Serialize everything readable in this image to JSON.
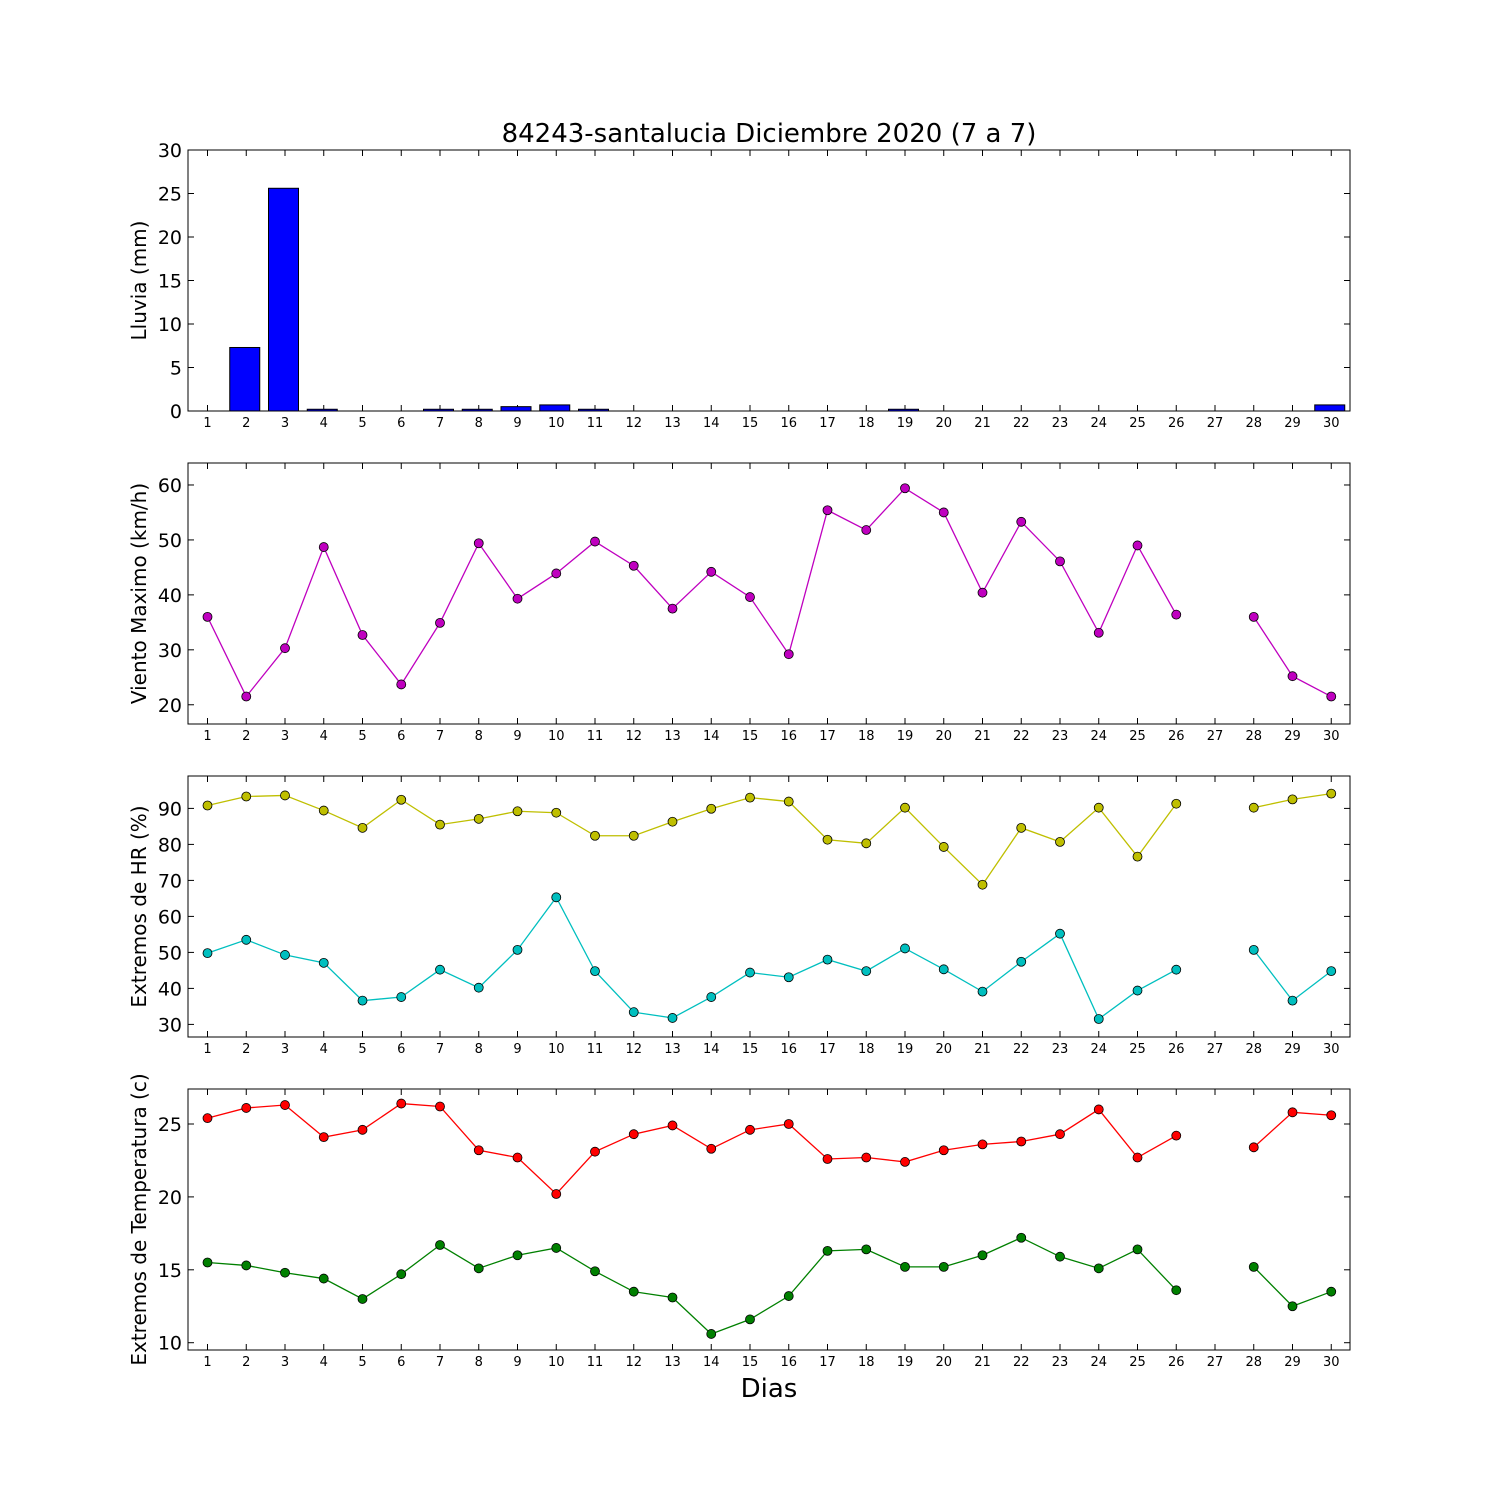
{
  "title": "84243-santalucia Diciembre 2020  (7 a 7)",
  "xlabel": "Dias",
  "colors": {
    "rain": "#0000ff",
    "wind": "#bf00bf",
    "hr_max": "#bfbf00",
    "hr_min": "#00bfbf",
    "temp_max": "#ff0000",
    "temp_min": "#008000"
  },
  "chart_data": [
    {
      "type": "bar",
      "ylabel": "Lluvia (mm)",
      "categories": [
        "1",
        "2",
        "3",
        "4",
        "5",
        "6",
        "7",
        "8",
        "9",
        "10",
        "11",
        "12",
        "13",
        "14",
        "15",
        "16",
        "17",
        "18",
        "19",
        "20",
        "21",
        "22",
        "23",
        "24",
        "25",
        "26",
        "27",
        "28",
        "29",
        "30"
      ],
      "values": [
        0,
        7.3,
        25.6,
        0.2,
        0,
        0,
        0.2,
        0.2,
        0.5,
        0.7,
        0.2,
        0,
        0,
        0,
        0,
        0,
        0,
        0,
        0.2,
        0,
        0,
        0,
        0,
        0,
        0,
        0,
        0,
        0,
        0,
        0.7
      ],
      "ylim": [
        0,
        30
      ],
      "yticks": [
        0,
        5,
        10,
        15,
        20,
        25,
        30
      ]
    },
    {
      "type": "line",
      "ylabel": "Viento Maximo (km/h)",
      "categories": [
        "1",
        "2",
        "3",
        "4",
        "5",
        "6",
        "7",
        "8",
        "9",
        "10",
        "11",
        "12",
        "13",
        "14",
        "15",
        "16",
        "17",
        "18",
        "19",
        "20",
        "21",
        "22",
        "23",
        "24",
        "25",
        "26",
        "27",
        "28",
        "29",
        "30"
      ],
      "series": [
        {
          "values": [
            36,
            21.5,
            30.3,
            48.7,
            32.7,
            23.7,
            34.9,
            49.4,
            39.3,
            43.9,
            49.7,
            45.3,
            37.5,
            44.2,
            39.6,
            29.2,
            55.4,
            51.8,
            59.4,
            55,
            40.4,
            53.3,
            46.1,
            33.1,
            49,
            36.4,
            null,
            36,
            25.2,
            21.5
          ]
        }
      ],
      "ylim": [
        16.5,
        64
      ],
      "yticks": [
        20,
        30,
        40,
        50,
        60
      ]
    },
    {
      "type": "line",
      "ylabel": "Extremos de HR (%)",
      "categories": [
        "1",
        "2",
        "3",
        "4",
        "5",
        "6",
        "7",
        "8",
        "9",
        "10",
        "11",
        "12",
        "13",
        "14",
        "15",
        "16",
        "17",
        "18",
        "19",
        "20",
        "21",
        "22",
        "23",
        "24",
        "25",
        "26",
        "27",
        "28",
        "29",
        "30"
      ],
      "series": [
        {
          "values": [
            90.8,
            93.3,
            93.6,
            89.4,
            84.6,
            92.4,
            85.5,
            87.1,
            89.2,
            88.8,
            82.4,
            82.4,
            86.3,
            89.9,
            93,
            91.9,
            81.3,
            80.3,
            90.2,
            79.3,
            68.8,
            84.6,
            80.7,
            90.2,
            76.6,
            91.3,
            null,
            90.2,
            92.5,
            94.1
          ]
        },
        {
          "values": [
            49.8,
            53.5,
            49.3,
            47.1,
            36.6,
            37.6,
            45.2,
            40.2,
            50.7,
            65.3,
            44.8,
            33.4,
            31.8,
            37.6,
            44.4,
            43.1,
            48,
            44.8,
            51.1,
            45.3,
            39.1,
            47.4,
            55.2,
            31.5,
            39.4,
            45.2,
            null,
            50.7,
            36.6,
            44.8
          ]
        }
      ],
      "ylim": [
        26.5,
        99
      ],
      "yticks": [
        30,
        40,
        50,
        60,
        70,
        80,
        90
      ]
    },
    {
      "type": "line",
      "ylabel": "Extremos de Temperatura (c)",
      "categories": [
        "1",
        "2",
        "3",
        "4",
        "5",
        "6",
        "7",
        "8",
        "9",
        "10",
        "11",
        "12",
        "13",
        "14",
        "15",
        "16",
        "17",
        "18",
        "19",
        "20",
        "21",
        "22",
        "23",
        "24",
        "25",
        "26",
        "27",
        "28",
        "29",
        "30"
      ],
      "series": [
        {
          "values": [
            25.4,
            26.1,
            26.3,
            24.1,
            24.6,
            26.4,
            26.2,
            23.2,
            22.7,
            20.2,
            23.1,
            24.3,
            24.9,
            23.3,
            24.6,
            25,
            22.6,
            22.7,
            22.4,
            23.2,
            23.6,
            23.8,
            24.3,
            26,
            22.7,
            24.2,
            null,
            23.4,
            25.8,
            25.6
          ]
        },
        {
          "values": [
            15.5,
            15.3,
            14.8,
            14.4,
            13,
            14.7,
            16.7,
            15.1,
            16,
            16.5,
            14.9,
            13.5,
            13.1,
            10.6,
            11.6,
            13.2,
            16.3,
            16.4,
            15.2,
            15.2,
            16,
            17.2,
            15.9,
            15.1,
            16.4,
            13.6,
            null,
            15.2,
            12.5,
            13.5
          ]
        }
      ],
      "ylim": [
        9.5,
        27.4
      ],
      "yticks": [
        10,
        15,
        20,
        25
      ]
    }
  ]
}
